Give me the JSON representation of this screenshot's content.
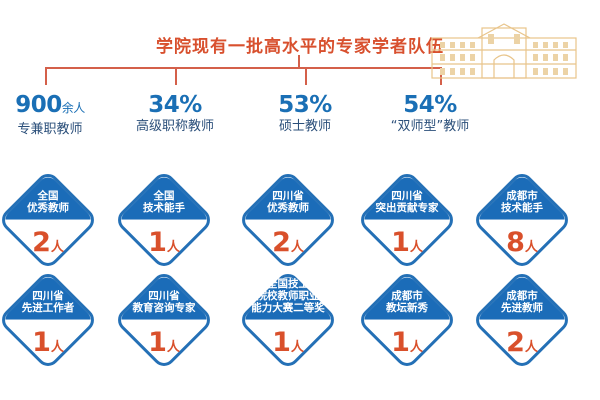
{
  "title": "学院现有一批高水平的专家学者队伍",
  "stats": [
    {
      "value": "900",
      "suffix": "余人",
      "label": "专兼职教师"
    },
    {
      "value": "34%",
      "suffix": "",
      "label": "高级职称教师"
    },
    {
      "value": "53%",
      "suffix": "",
      "label": "硕士教师"
    },
    {
      "value": "54%",
      "suffix": "",
      "label": "“双师型”教师"
    }
  ],
  "unit": "人",
  "badges": [
    {
      "lines": [
        "全国",
        "优秀教师"
      ],
      "count": "2"
    },
    {
      "lines": [
        "全国",
        "技术能手"
      ],
      "count": "1"
    },
    {
      "lines": [
        "四川省",
        "优秀教师"
      ],
      "count": "2"
    },
    {
      "lines": [
        "四川省",
        "突出贡献专家"
      ],
      "count": "1"
    },
    {
      "lines": [
        "成都市",
        "技术能手"
      ],
      "count": "8"
    },
    {
      "lines": [
        "四川省",
        "先进工作者"
      ],
      "count": "1"
    },
    {
      "lines": [
        "四川省",
        "教育咨询专家"
      ],
      "count": "1"
    },
    {
      "lines": [
        "全国技工",
        "院校教师职业",
        "能力大赛二等奖"
      ],
      "count": "1"
    },
    {
      "lines": [
        "成都市",
        "教坛新秀"
      ],
      "count": "1"
    },
    {
      "lines": [
        "成都市",
        "先进教师"
      ],
      "count": "2"
    }
  ],
  "colors": {
    "accent_red": "#d8502e",
    "badge_blue": "#1b6cb8",
    "stat_blue": "#1a6fb5"
  }
}
